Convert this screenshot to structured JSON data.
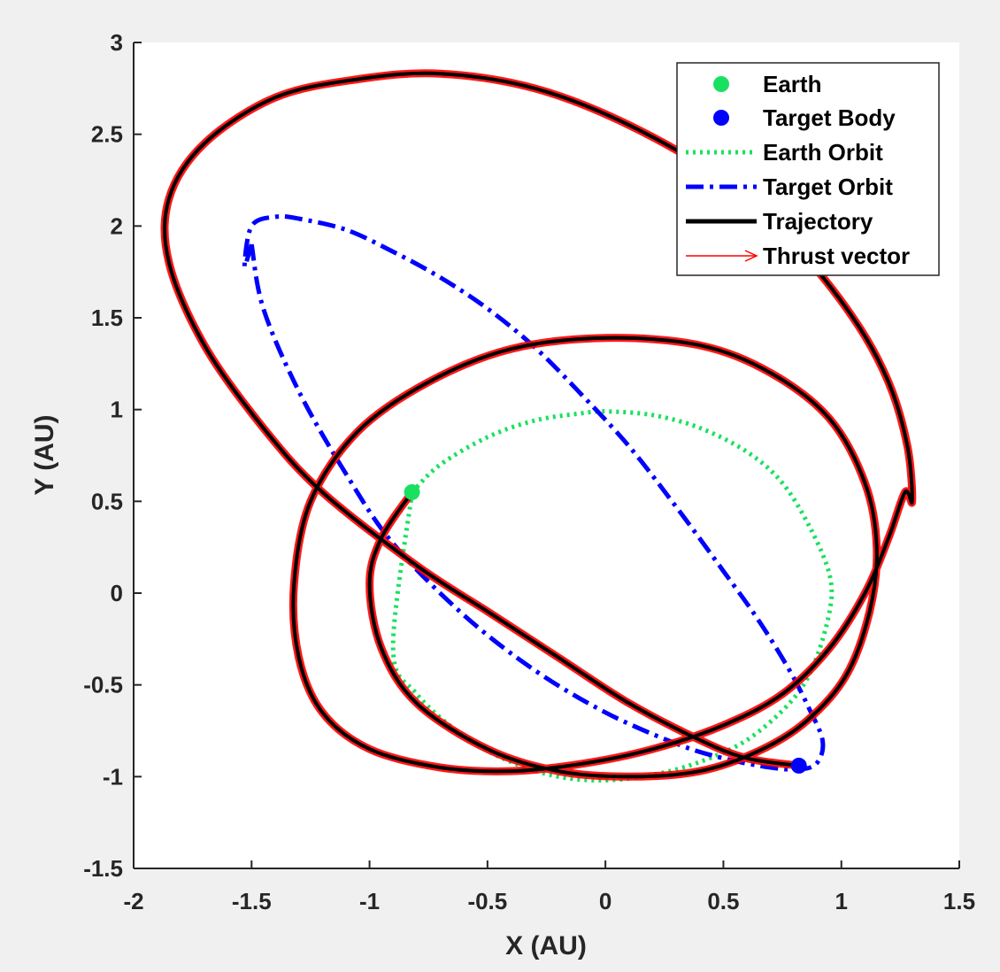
{
  "chart_data": {
    "type": "line",
    "xlabel": "X (AU)",
    "ylabel": "Y (AU)",
    "xlim": [
      -2,
      1.5
    ],
    "ylim": [
      -1.5,
      3
    ],
    "xticks": [
      -2,
      -1.5,
      -1,
      -0.5,
      0,
      0.5,
      1,
      1.5
    ],
    "xtick_labels": [
      "-2",
      "-1.5",
      "-1",
      "-0.5",
      "0",
      "0.5",
      "1",
      "1.5"
    ],
    "yticks": [
      -1.5,
      -1,
      -0.5,
      0,
      0.5,
      1,
      1.5,
      2,
      2.5,
      3
    ],
    "ytick_labels": [
      "-1.5",
      "-1",
      "-0.5",
      "0",
      "0.5",
      "1",
      "1.5",
      "2",
      "2.5",
      "3"
    ],
    "grid": false,
    "legend_position": "top-right",
    "colors": {
      "earth": "#19e15f",
      "target_body": "#0000ff",
      "earth_orbit": "#19e15f",
      "target_orbit": "#0000ff",
      "trajectory": "#000000",
      "thrust_vector": "#ff0000"
    },
    "series": [
      {
        "name": "Earth",
        "kind": "marker",
        "x": [
          -0.82
        ],
        "y": [
          0.55
        ]
      },
      {
        "name": "Target Body",
        "kind": "marker",
        "x": [
          0.82
        ],
        "y": [
          -0.94
        ]
      },
      {
        "name": "Earth Orbit",
        "kind": "dotted-line",
        "x": [
          -0.82,
          -0.7,
          -0.5,
          -0.3,
          -0.1,
          0.0,
          0.2,
          0.4,
          0.6,
          0.75,
          0.87,
          0.95,
          0.95,
          0.88,
          0.78,
          0.6,
          0.4,
          0.2,
          0.0,
          -0.2,
          -0.4,
          -0.6,
          -0.8,
          -0.9
        ],
        "y": [
          0.55,
          0.7,
          0.85,
          0.94,
          0.98,
          0.99,
          0.97,
          0.9,
          0.77,
          0.6,
          0.35,
          0.1,
          -0.1,
          -0.4,
          -0.6,
          -0.8,
          -0.92,
          -0.99,
          -1.02,
          -1.0,
          -0.92,
          -0.78,
          -0.55,
          -0.3
        ]
      },
      {
        "name": "Target Orbit",
        "kind": "dash-dot-line",
        "x": [
          -1.5,
          -1.53,
          -1.5,
          -1.4,
          -1.3,
          -1.1,
          -0.9,
          -0.7,
          -0.5,
          -0.3,
          -0.1,
          0.1,
          0.3,
          0.5,
          0.65,
          0.78,
          0.86,
          0.92,
          0.9,
          0.83,
          0.7,
          0.5,
          0.3,
          0.0,
          -0.3,
          -0.6,
          -0.9,
          -1.1,
          -1.3,
          -1.45,
          -1.5
        ],
        "y": [
          1.9,
          1.78,
          2.0,
          2.05,
          2.04,
          1.98,
          1.86,
          1.72,
          1.55,
          1.34,
          1.08,
          0.8,
          0.47,
          0.12,
          -0.15,
          -0.42,
          -0.62,
          -0.8,
          -0.92,
          -0.96,
          -0.95,
          -0.9,
          -0.82,
          -0.65,
          -0.42,
          -0.12,
          0.27,
          0.65,
          1.1,
          1.55,
          1.9
        ]
      },
      {
        "name": "Trajectory",
        "kind": "solid-line",
        "x": [
          -0.82,
          -0.95,
          -1.0,
          -0.95,
          -0.8,
          -0.5,
          -0.2,
          0.1,
          0.4,
          0.65,
          0.85,
          1.02,
          1.12,
          1.15,
          1.1,
          0.95,
          0.7,
          0.4,
          0.0,
          -0.4,
          -0.75,
          -1.05,
          -1.25,
          -1.32,
          -1.3,
          -1.2,
          -1.0,
          -0.7,
          -0.4,
          -0.1,
          0.2,
          0.5,
          0.75,
          0.95,
          1.1,
          1.2,
          1.27,
          1.3,
          1.28,
          1.2,
          1.05,
          0.8,
          0.5,
          0.1,
          -0.3,
          -0.7,
          -1.05,
          -1.4,
          -1.7,
          -1.85,
          -1.85,
          -1.7,
          -1.45,
          -1.2,
          -0.8,
          -0.5,
          -0.2,
          0.1,
          0.4,
          0.6,
          0.82
        ],
        "y": [
          0.55,
          0.3,
          0.05,
          -0.3,
          -0.6,
          -0.85,
          -0.97,
          -1.0,
          -0.97,
          -0.86,
          -0.7,
          -0.45,
          -0.1,
          0.25,
          0.6,
          0.95,
          1.2,
          1.35,
          1.39,
          1.33,
          1.15,
          0.88,
          0.5,
          0.05,
          -0.35,
          -0.65,
          -0.85,
          -0.95,
          -0.97,
          -0.93,
          -0.85,
          -0.72,
          -0.55,
          -0.3,
          0.0,
          0.3,
          0.55,
          0.5,
          0.8,
          1.15,
          1.5,
          1.9,
          2.25,
          2.55,
          2.75,
          2.83,
          2.8,
          2.7,
          2.45,
          2.15,
          1.8,
          1.35,
          0.9,
          0.55,
          0.15,
          -0.1,
          -0.35,
          -0.6,
          -0.8,
          -0.9,
          -0.94
        ]
      },
      {
        "name": "Thrust vector",
        "kind": "arrows",
        "note_x": [],
        "x": [],
        "y": []
      }
    ]
  },
  "legend": {
    "items": [
      {
        "label": "Earth"
      },
      {
        "label": "Target Body"
      },
      {
        "label": "Earth Orbit"
      },
      {
        "label": "Target Orbit"
      },
      {
        "label": "Trajectory"
      },
      {
        "label": "Thrust vector"
      }
    ]
  }
}
